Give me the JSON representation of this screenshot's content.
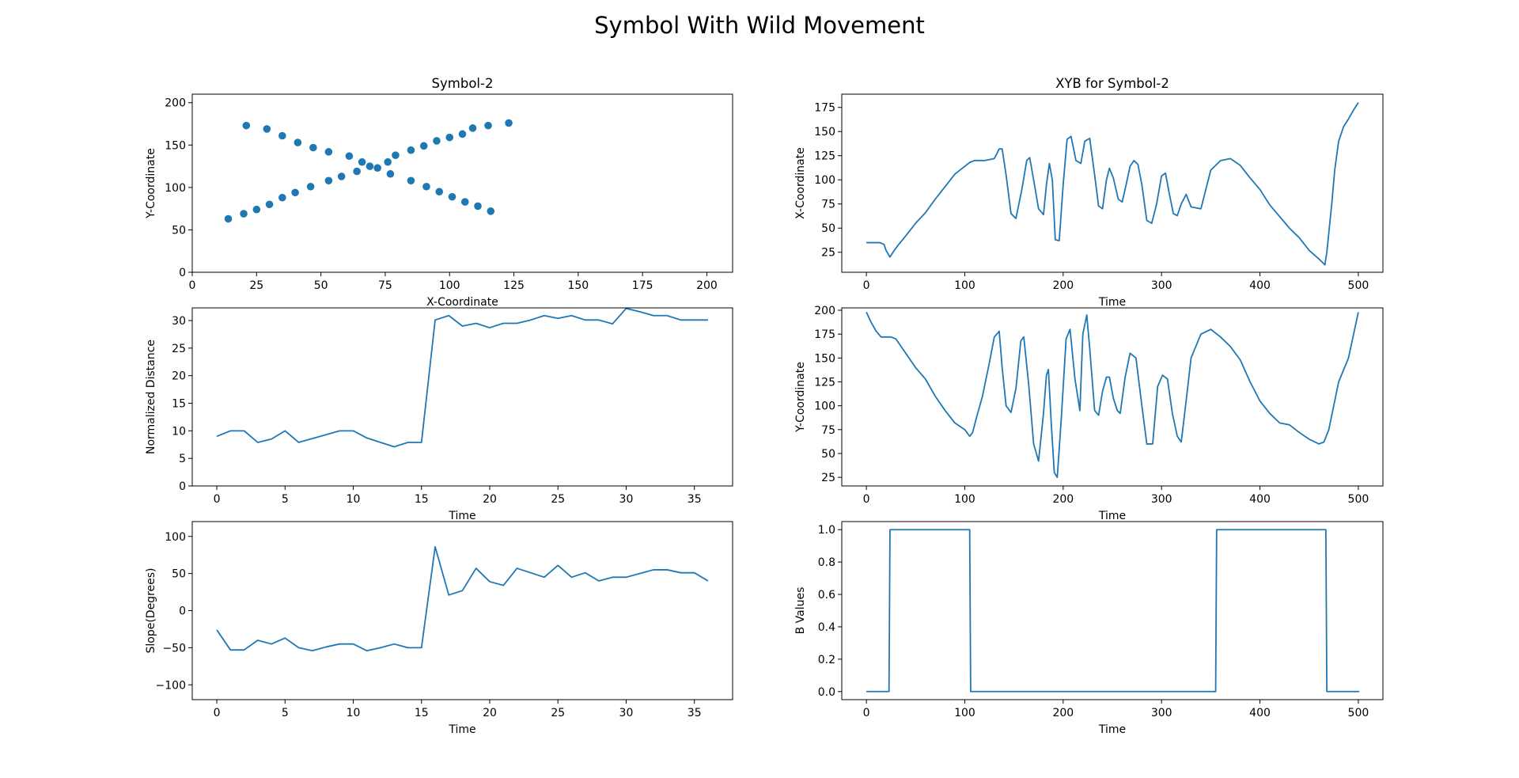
{
  "figure": {
    "title": "Symbol With Wild Movement"
  },
  "chart_data": [
    {
      "id": "scatter",
      "type": "scatter",
      "title": "Symbol-2",
      "xlabel": "X-Coordinate",
      "ylabel": "Y-Coordinate",
      "xlim": [
        0,
        210
      ],
      "ylim": [
        0,
        210
      ],
      "xticks": [
        0,
        25,
        50,
        75,
        100,
        125,
        150,
        175,
        200
      ],
      "yticks": [
        0,
        50,
        100,
        150,
        200
      ],
      "color": "#1f77b4",
      "points": [
        [
          14,
          63
        ],
        [
          20,
          69
        ],
        [
          25,
          74
        ],
        [
          30,
          80
        ],
        [
          35,
          88
        ],
        [
          40,
          94
        ],
        [
          46,
          101
        ],
        [
          53,
          108
        ],
        [
          58,
          113
        ],
        [
          64,
          119
        ],
        [
          69,
          125
        ],
        [
          76,
          130
        ],
        [
          79,
          138
        ],
        [
          85,
          144
        ],
        [
          90,
          149
        ],
        [
          95,
          155
        ],
        [
          100,
          159
        ],
        [
          105,
          163
        ],
        [
          109,
          170
        ],
        [
          115,
          173
        ],
        [
          123,
          176
        ],
        [
          21,
          173
        ],
        [
          29,
          169
        ],
        [
          35,
          161
        ],
        [
          41,
          153
        ],
        [
          47,
          147
        ],
        [
          53,
          142
        ],
        [
          61,
          137
        ],
        [
          66,
          130
        ],
        [
          72,
          123
        ],
        [
          77,
          116
        ],
        [
          85,
          108
        ],
        [
          91,
          101
        ],
        [
          96,
          95
        ],
        [
          101,
          89
        ],
        [
          106,
          83
        ],
        [
          111,
          78
        ],
        [
          116,
          72
        ]
      ]
    },
    {
      "id": "distance",
      "type": "line",
      "title": "",
      "xlabel": "Time",
      "ylabel": "Normalized Distance",
      "xlim": [
        -1.8,
        37.8
      ],
      "ylim": [
        0,
        32.3
      ],
      "xticks": [
        0,
        5,
        10,
        15,
        20,
        25,
        30,
        35
      ],
      "yticks": [
        0,
        5,
        10,
        15,
        20,
        25,
        30
      ],
      "color": "#1f77b4",
      "x": [
        0,
        1,
        2,
        3,
        4,
        5,
        6,
        7,
        8,
        9,
        10,
        11,
        12,
        13,
        14,
        15,
        16,
        17,
        18,
        19,
        20,
        21,
        22,
        23,
        24,
        25,
        26,
        27,
        28,
        29,
        30,
        31,
        32,
        33,
        34,
        35,
        36
      ],
      "y": [
        9.0,
        10.0,
        10.0,
        7.9,
        8.5,
        10.0,
        7.9,
        8.6,
        9.3,
        10.0,
        10.0,
        8.7,
        7.9,
        7.1,
        7.9,
        7.9,
        30.1,
        30.9,
        29.0,
        29.5,
        28.7,
        29.5,
        29.5,
        30.1,
        30.9,
        30.4,
        30.9,
        30.1,
        30.1,
        29.4,
        32.2,
        31.6,
        30.9,
        30.9,
        30.1,
        30.1,
        30.1
      ]
    },
    {
      "id": "slope",
      "type": "line",
      "title": "",
      "xlabel": "Time",
      "ylabel": "Slope(Degrees)",
      "xlim": [
        -1.8,
        37.8
      ],
      "ylim": [
        -120,
        120
      ],
      "xticks": [
        0,
        5,
        10,
        15,
        20,
        25,
        30,
        35
      ],
      "yticks": [
        -100,
        -50,
        0,
        50,
        100
      ],
      "color": "#1f77b4",
      "x": [
        0,
        1,
        2,
        3,
        4,
        5,
        6,
        7,
        8,
        9,
        10,
        11,
        12,
        13,
        14,
        15,
        16,
        17,
        18,
        19,
        20,
        21,
        22,
        23,
        24,
        25,
        26,
        27,
        28,
        29,
        30,
        31,
        32,
        33,
        34,
        35,
        36
      ],
      "y": [
        -26,
        -53,
        -53,
        -40,
        -45,
        -37,
        -50,
        -54,
        -49,
        -45,
        -45,
        -54,
        -50,
        -45,
        -50,
        -50,
        86,
        21,
        27,
        57,
        39,
        34,
        57,
        51,
        45,
        61,
        45,
        51,
        40,
        45,
        45,
        50,
        55,
        55,
        51,
        51,
        40
      ]
    },
    {
      "id": "xcoord",
      "type": "line",
      "title": "XYB for Symbol-2",
      "xlabel": "Time",
      "ylabel": "X-Coordinate",
      "xlim": [
        -25,
        525
      ],
      "ylim": [
        4.3,
        188.7
      ],
      "xticks": [
        0,
        100,
        200,
        300,
        400,
        500
      ],
      "yticks": [
        25,
        50,
        75,
        100,
        125,
        150,
        175
      ],
      "color": "#1f77b4",
      "x": [
        0,
        14,
        18,
        20,
        24,
        27,
        32,
        40,
        50,
        60,
        70,
        80,
        90,
        100,
        105,
        110,
        120,
        130,
        135,
        138,
        142,
        147,
        152,
        158,
        163,
        166,
        170,
        175,
        180,
        183,
        186,
        189,
        192,
        196,
        200,
        204,
        208,
        213,
        218,
        222,
        227,
        232,
        236,
        240,
        244,
        247,
        251,
        256,
        260,
        264,
        268,
        272,
        276,
        280,
        285,
        290,
        295,
        300,
        304,
        308,
        312,
        316,
        320,
        325,
        330,
        340,
        350,
        356,
        360,
        370,
        380,
        390,
        400,
        410,
        420,
        430,
        440,
        450,
        460,
        466,
        468,
        470,
        473,
        476,
        480,
        485,
        490,
        495,
        500
      ],
      "y": [
        35,
        35,
        33,
        27,
        20,
        25,
        32,
        42,
        55,
        66,
        80,
        93,
        106,
        114,
        118,
        120,
        120,
        122,
        132,
        132,
        105,
        65,
        60,
        90,
        120,
        123,
        100,
        70,
        64,
        95,
        117,
        100,
        38,
        37,
        95,
        142,
        145,
        120,
        117,
        140,
        143,
        105,
        73,
        70,
        100,
        112,
        102,
        80,
        77,
        95,
        114,
        120,
        116,
        95,
        58,
        55,
        75,
        104,
        107,
        85,
        65,
        63,
        75,
        85,
        72,
        70,
        110,
        116,
        120,
        122,
        115,
        102,
        90,
        74,
        62,
        50,
        40,
        27,
        18,
        12,
        25,
        45,
        75,
        110,
        140,
        155,
        163,
        172,
        180
      ]
    },
    {
      "id": "ycoord",
      "type": "line",
      "title": "",
      "xlabel": "Time",
      "ylabel": "Y-Coordinate",
      "xlim": [
        -25,
        525
      ],
      "ylim": [
        16,
        202.5
      ],
      "xticks": [
        0,
        100,
        200,
        300,
        400,
        500
      ],
      "yticks": [
        25,
        50,
        75,
        100,
        125,
        150,
        175,
        200
      ],
      "color": "#1f77b4",
      "x": [
        0,
        5,
        10,
        15,
        20,
        25,
        30,
        40,
        50,
        60,
        70,
        80,
        90,
        100,
        105,
        108,
        112,
        118,
        125,
        130,
        135,
        138,
        142,
        147,
        152,
        157,
        160,
        165,
        170,
        175,
        180,
        183,
        185,
        188,
        191,
        194,
        198,
        203,
        207,
        212,
        217,
        220,
        224,
        227,
        232,
        236,
        240,
        244,
        247,
        251,
        255,
        258,
        263,
        268,
        274,
        280,
        285,
        291,
        296,
        301,
        306,
        311,
        316,
        320,
        325,
        330,
        340,
        350,
        360,
        370,
        380,
        390,
        400,
        410,
        420,
        430,
        440,
        450,
        460,
        465,
        470,
        475,
        480,
        490,
        500
      ],
      "y": [
        198,
        187,
        178,
        172,
        172,
        172,
        170,
        155,
        140,
        128,
        110,
        95,
        82,
        75,
        68,
        72,
        88,
        110,
        145,
        172,
        178,
        140,
        100,
        93,
        118,
        168,
        172,
        122,
        60,
        42,
        92,
        132,
        138,
        80,
        30,
        25,
        85,
        170,
        180,
        128,
        95,
        175,
        195,
        160,
        95,
        90,
        115,
        130,
        130,
        108,
        95,
        92,
        130,
        155,
        150,
        100,
        60,
        60,
        120,
        132,
        128,
        92,
        68,
        62,
        105,
        150,
        175,
        180,
        172,
        162,
        148,
        125,
        105,
        92,
        82,
        80,
        72,
        65,
        60,
        62,
        75,
        100,
        125,
        150,
        198
      ]
    },
    {
      "id": "bvalues",
      "type": "line",
      "title": "",
      "xlabel": "Time",
      "ylabel": "B Values",
      "xlim": [
        -25,
        525
      ],
      "ylim": [
        -0.05,
        1.05
      ],
      "xticks": [
        0,
        100,
        200,
        300,
        400,
        500
      ],
      "yticks": [
        0.0,
        0.2,
        0.4,
        0.6,
        0.8,
        1.0
      ],
      "color": "#1f77b4",
      "x": [
        0,
        23,
        24,
        105,
        106,
        355,
        356,
        467,
        468,
        501
      ],
      "y": [
        0,
        0,
        1,
        1,
        0,
        0,
        1,
        1,
        0,
        0
      ]
    }
  ]
}
